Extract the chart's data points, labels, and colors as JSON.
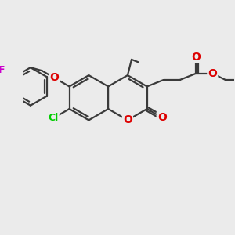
{
  "bg_color": "#ebebeb",
  "bond_color": "#3a3a3a",
  "bond_width": 1.6,
  "atom_colors": {
    "O": "#dd0000",
    "Cl": "#00cc00",
    "F": "#cc00cc"
  },
  "font_size": 9,
  "figsize": [
    3.0,
    3.0
  ],
  "dpi": 100
}
